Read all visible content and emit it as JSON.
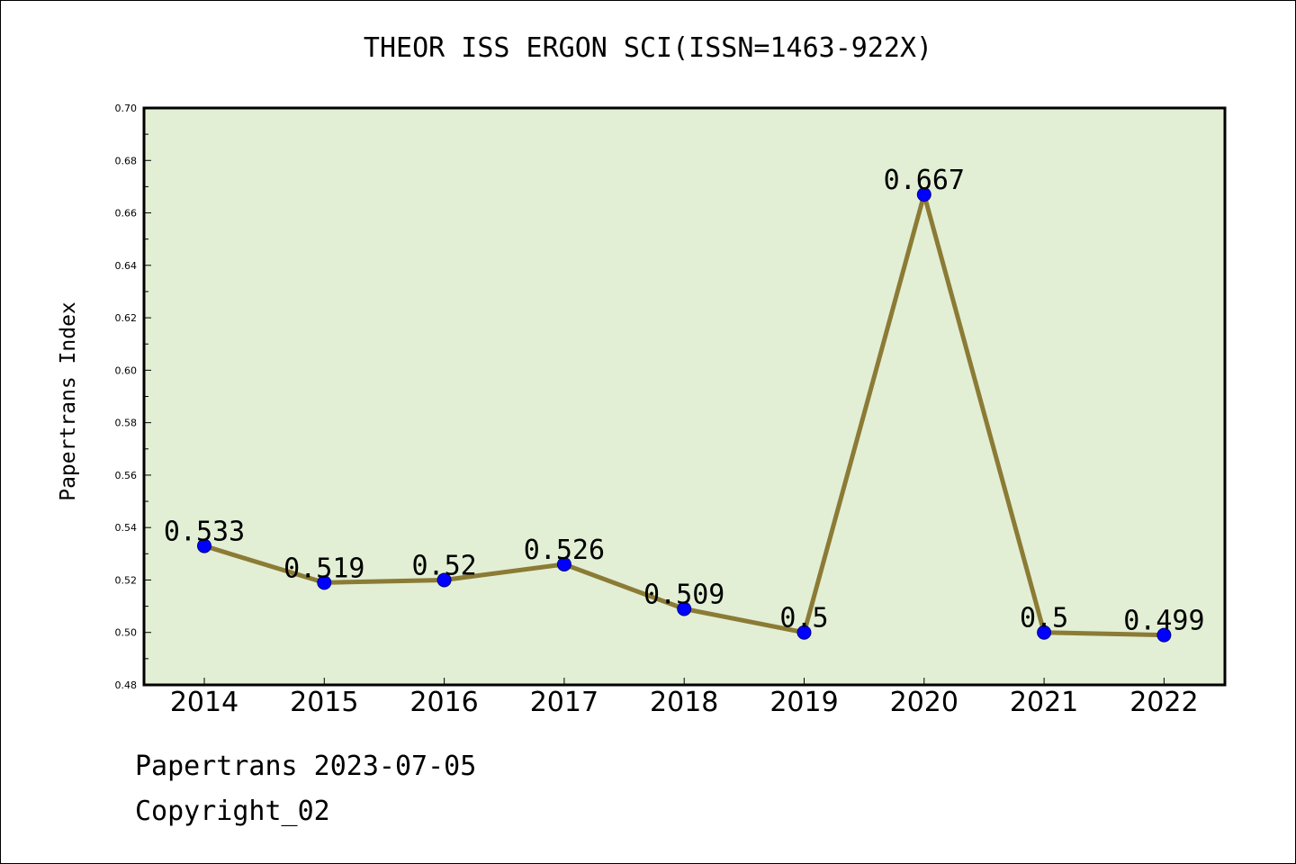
{
  "chart_data": {
    "type": "line",
    "title": "THEOR ISS ERGON SCI(ISSN=1463-922X)",
    "xlabel": "",
    "ylabel": "Papertrans Index",
    "categories": [
      "2014",
      "2015",
      "2016",
      "2017",
      "2018",
      "2019",
      "2020",
      "2021",
      "2022"
    ],
    "series": [
      {
        "values": [
          0.533,
          0.519,
          0.52,
          0.526,
          0.509,
          0.5,
          0.667,
          0.5,
          0.499
        ],
        "labels": [
          "0.533",
          "0.519",
          "0.52",
          "0.526",
          "0.509",
          "0.5",
          "0.667",
          "0.5",
          "0.499"
        ]
      }
    ],
    "yticks": [
      "0.48",
      "0.50",
      "0.52",
      "0.54",
      "0.56",
      "0.58",
      "0.60",
      "0.62",
      "0.64",
      "0.66",
      "0.68",
      "0.70"
    ],
    "ylim": [
      0.48,
      0.7
    ],
    "grid": false,
    "colors": {
      "plot_background": "#e2efd5",
      "line": "#8b7b35",
      "marker": "#0000ff",
      "axis": "#000000"
    }
  },
  "footer": {
    "line1": "Papertrans 2023-07-05",
    "line2": "Copyright_02"
  }
}
